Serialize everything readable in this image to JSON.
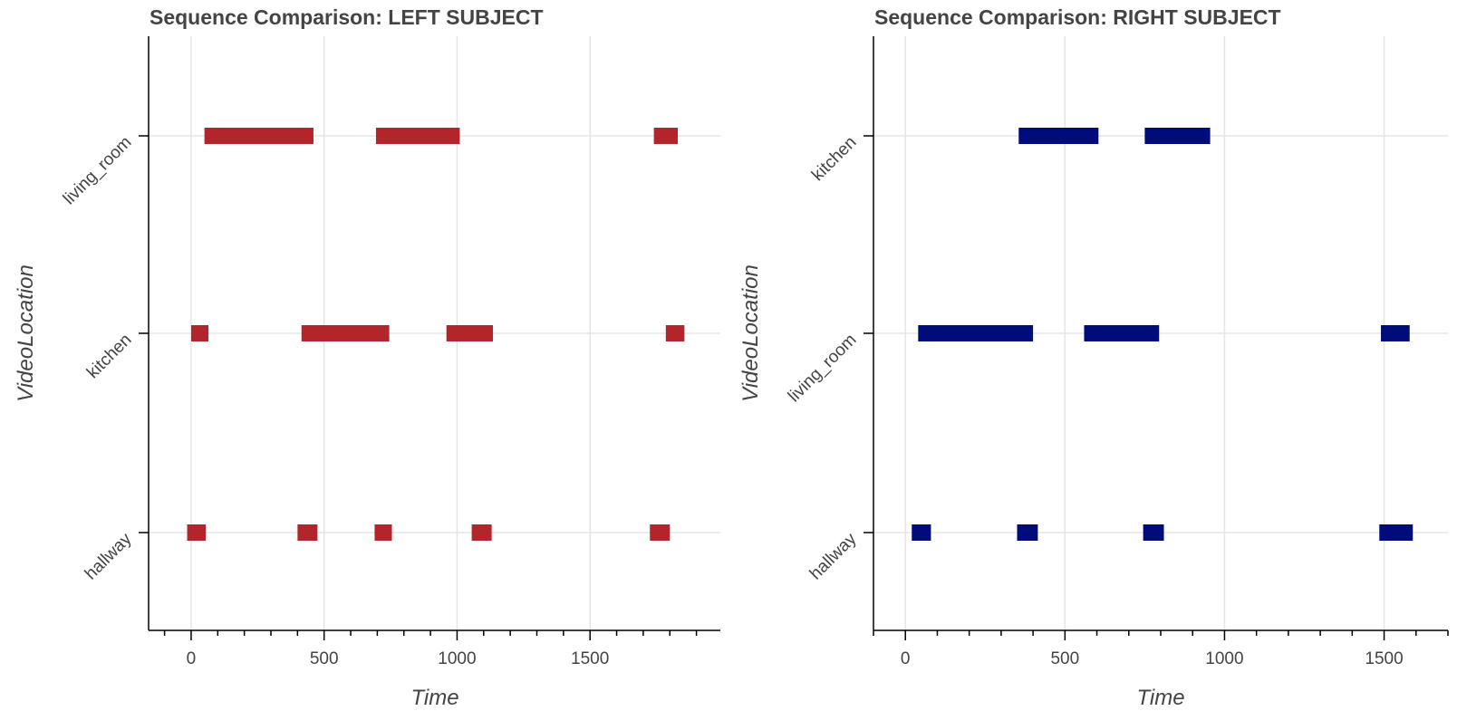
{
  "chart_data": [
    {
      "type": "bar",
      "orientation": "horizontal-intervals",
      "title": "Sequence Comparison: LEFT SUBJECT",
      "xlabel": "Time",
      "ylabel": "VideoLocation",
      "xlim": [
        -160,
        1990
      ],
      "x_ticks": [
        0,
        500,
        1000,
        1500
      ],
      "x_minor_step": 100,
      "categories": [
        "hallway",
        "kitchen",
        "living_room"
      ],
      "color": "#b2262b",
      "grid": true,
      "intervals": [
        {
          "category": "living_room",
          "start": 50,
          "end": 460
        },
        {
          "category": "living_room",
          "start": 695,
          "end": 1010
        },
        {
          "category": "living_room",
          "start": 1740,
          "end": 1830
        },
        {
          "category": "kitchen",
          "start": 0,
          "end": 65
        },
        {
          "category": "kitchen",
          "start": 415,
          "end": 745
        },
        {
          "category": "kitchen",
          "start": 960,
          "end": 1135
        },
        {
          "category": "kitchen",
          "start": 1785,
          "end": 1855
        },
        {
          "category": "hallway",
          "start": -15,
          "end": 55
        },
        {
          "category": "hallway",
          "start": 400,
          "end": 475
        },
        {
          "category": "hallway",
          "start": 690,
          "end": 755
        },
        {
          "category": "hallway",
          "start": 1055,
          "end": 1130
        },
        {
          "category": "hallway",
          "start": 1725,
          "end": 1800
        }
      ]
    },
    {
      "type": "bar",
      "orientation": "horizontal-intervals",
      "title": "Sequence Comparison: RIGHT SUBJECT",
      "xlabel": "Time",
      "ylabel": "VideoLocation",
      "xlim": [
        -100,
        1700
      ],
      "x_ticks": [
        0,
        500,
        1000,
        1500
      ],
      "x_minor_step": 100,
      "categories": [
        "hallway",
        "living_room",
        "kitchen"
      ],
      "color": "#000c7a",
      "grid": true,
      "intervals": [
        {
          "category": "kitchen",
          "start": 355,
          "end": 605
        },
        {
          "category": "kitchen",
          "start": 750,
          "end": 955
        },
        {
          "category": "living_room",
          "start": 40,
          "end": 400
        },
        {
          "category": "living_room",
          "start": 560,
          "end": 795
        },
        {
          "category": "living_room",
          "start": 1490,
          "end": 1580
        },
        {
          "category": "hallway",
          "start": 20,
          "end": 80
        },
        {
          "category": "hallway",
          "start": 350,
          "end": 415
        },
        {
          "category": "hallway",
          "start": 745,
          "end": 810
        },
        {
          "category": "hallway",
          "start": 1485,
          "end": 1590
        }
      ]
    }
  ]
}
